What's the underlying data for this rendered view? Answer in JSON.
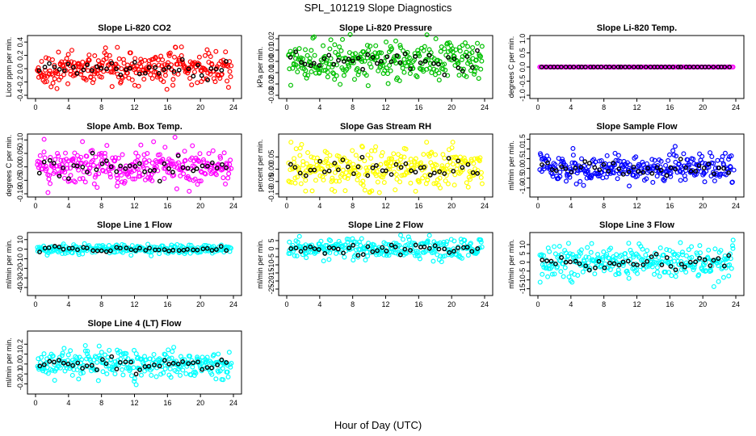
{
  "figure": {
    "title": "SPL_101219  Slope Diagnostics",
    "xlabel": "Hour of Day (UTC)"
  },
  "chart_data": [
    {
      "type": "scatter",
      "title": "Slope Li-820 CO2",
      "ylabel": "Licor ppm per min.",
      "xlim": [
        0,
        24
      ],
      "ylim": [
        -0.4,
        0.45
      ],
      "x_ticks": [
        "0",
        "4",
        "8",
        "12",
        "16",
        "20",
        "24"
      ],
      "y_ticks": [
        "-0.4",
        "-0.2",
        "0.0",
        "0.2",
        "0.4"
      ],
      "y_tick_values": [
        -0.4,
        -0.2,
        0.0,
        0.2,
        0.4
      ],
      "spread": 0.12,
      "bound": 0.42,
      "n": 300,
      "colors": {
        "points": "#ff0000",
        "means": "#000000"
      },
      "grid": false
    },
    {
      "type": "scatter",
      "title": "Slope Li-820 Pressure",
      "ylabel": "kPa per min.",
      "xlim": [
        0,
        24
      ],
      "ylim": [
        -0.03,
        0.02
      ],
      "x_ticks": [
        "0",
        "4",
        "8",
        "12",
        "16",
        "20",
        "24"
      ],
      "y_ticks": [
        "-0.03",
        "-0.02",
        "-0.01",
        "0.00",
        "0.01",
        "0.02"
      ],
      "y_tick_values": [
        -0.03,
        -0.02,
        -0.01,
        0.0,
        0.01,
        0.02
      ],
      "spread": 0.008,
      "bound": 0.025,
      "n": 300,
      "colors": {
        "points": "#00c000",
        "means": "#000000"
      },
      "grid": false
    },
    {
      "type": "scatter",
      "title": "Slope Li-820 Temp.",
      "ylabel": "degrees C per min.",
      "xlim": [
        0,
        24
      ],
      "ylim": [
        -1.0,
        1.0
      ],
      "x_ticks": [
        "0",
        "4",
        "8",
        "12",
        "16",
        "20",
        "24"
      ],
      "y_ticks": [
        "-1.0",
        "-0.5",
        "0.0",
        "0.5",
        "1.0"
      ],
      "y_tick_values": [
        -1.0,
        -0.5,
        0.0,
        0.5,
        1.0
      ],
      "spread": 0.0,
      "bound": 0.0,
      "n": 160,
      "colors": {
        "points": "#ff00ff",
        "means": "#000000"
      },
      "grid": false
    },
    {
      "type": "scatter",
      "title": "Slope Amb. Box Temp.",
      "ylabel": "degrees C per min.",
      "xlim": [
        0,
        24
      ],
      "ylim": [
        -0.1,
        0.11
      ],
      "x_ticks": [
        "0",
        "4",
        "8",
        "12",
        "16",
        "20",
        "24"
      ],
      "y_ticks": [
        "-0.10",
        "-0.05",
        "0.00",
        "0.05",
        "0.10"
      ],
      "y_tick_values": [
        -0.1,
        -0.05,
        0.0,
        0.05,
        0.1
      ],
      "spread": 0.035,
      "bound": 0.11,
      "n": 300,
      "colors": {
        "points": "#ff00ff",
        "means": "#000000"
      },
      "grid": false
    },
    {
      "type": "scatter",
      "title": "Slope Gas Stream RH",
      "ylabel": "percent per min.",
      "xlim": [
        0,
        24
      ],
      "ylim": [
        -0.1,
        0.13
      ],
      "x_ticks": [
        "0",
        "4",
        "8",
        "12",
        "16",
        "20",
        "24"
      ],
      "y_ticks": [
        "-0.10",
        "-0.05",
        "0.00",
        "0.05"
      ],
      "y_tick_values": [
        -0.1,
        -0.05,
        0.0,
        0.05
      ],
      "spread": 0.04,
      "bound": 0.11,
      "n": 300,
      "colors": {
        "points": "#ffff00",
        "means": "#000000"
      },
      "grid": false
    },
    {
      "type": "scatter",
      "title": "Slope Sample Flow",
      "ylabel": "ml/min per min.",
      "xlim": [
        0,
        24
      ],
      "ylim": [
        -1.3,
        1.6
      ],
      "x_ticks": [
        "0",
        "4",
        "8",
        "12",
        "16",
        "20",
        "24"
      ],
      "y_ticks": [
        "-1.0",
        "-0.5",
        "0.0",
        "0.5",
        "1.0",
        "1.5"
      ],
      "y_tick_values": [
        -1.0,
        -0.5,
        0.0,
        0.5,
        1.0,
        1.5
      ],
      "spread": 0.35,
      "bound": 1.4,
      "n": 300,
      "colors": {
        "points": "#0000ff",
        "means": "#000000"
      },
      "grid": false
    },
    {
      "type": "scatter",
      "title": "Slope Line 1 Flow",
      "ylabel": "ml/min per min.",
      "xlim": [
        0,
        24
      ],
      "ylim": [
        -45,
        14
      ],
      "x_ticks": [
        "0",
        "4",
        "8",
        "12",
        "16",
        "20",
        "24"
      ],
      "y_ticks": [
        "-40",
        "-30",
        "-20",
        "-10",
        "0",
        "10"
      ],
      "y_tick_values": [
        -40,
        -30,
        -20,
        -10,
        0,
        10
      ],
      "spread": 2.5,
      "bound": 42,
      "n": 250,
      "colors": {
        "points": "#00ffff",
        "means": "#000000"
      },
      "grid": false
    },
    {
      "type": "scatter",
      "title": "Slope Line 2 Flow",
      "ylabel": "ml/min per min.",
      "xlim": [
        0,
        24
      ],
      "ylim": [
        -27,
        8
      ],
      "x_ticks": [
        "0",
        "4",
        "8",
        "12",
        "16",
        "20",
        "24"
      ],
      "y_ticks": [
        "-25",
        "-20",
        "-15",
        "-10",
        "-5",
        "0",
        "5"
      ],
      "y_tick_values": [
        -25,
        -20,
        -15,
        -10,
        -5,
        0,
        5
      ],
      "spread": 3,
      "bound": 26,
      "n": 280,
      "colors": {
        "points": "#00ffff",
        "means": "#000000"
      },
      "grid": false
    },
    {
      "type": "scatter",
      "title": "Slope Line 3 Flow",
      "ylabel": "ml/min per min.",
      "xlim": [
        0,
        24
      ],
      "ylim": [
        -17,
        15
      ],
      "x_ticks": [
        "0",
        "4",
        "8",
        "12",
        "16",
        "20",
        "24"
      ],
      "y_ticks": [
        "-15",
        "-10",
        "-5",
        "0",
        "5",
        "10"
      ],
      "y_tick_values": [
        -15,
        -10,
        -5,
        0,
        5,
        10
      ],
      "spread": 4.5,
      "bound": 16,
      "n": 300,
      "colors": {
        "points": "#00ffff",
        "means": "#000000"
      },
      "grid": false
    },
    {
      "type": "scatter",
      "title": "Slope Line 4 (LT) Flow",
      "ylabel": "ml/min per min.",
      "xlim": [
        0,
        24
      ],
      "ylim": [
        -0.27,
        0.3
      ],
      "x_ticks": [
        "0",
        "4",
        "8",
        "12",
        "16",
        "20",
        "24"
      ],
      "y_ticks": [
        "-0.2",
        "-0.1",
        "0.0",
        "0.1",
        "0.2"
      ],
      "y_tick_values": [
        -0.2,
        -0.1,
        0.0,
        0.1,
        0.2
      ],
      "spread": 0.07,
      "bound": 0.26,
      "n": 300,
      "colors": {
        "points": "#00ffff",
        "means": "#000000"
      },
      "grid": false
    }
  ]
}
